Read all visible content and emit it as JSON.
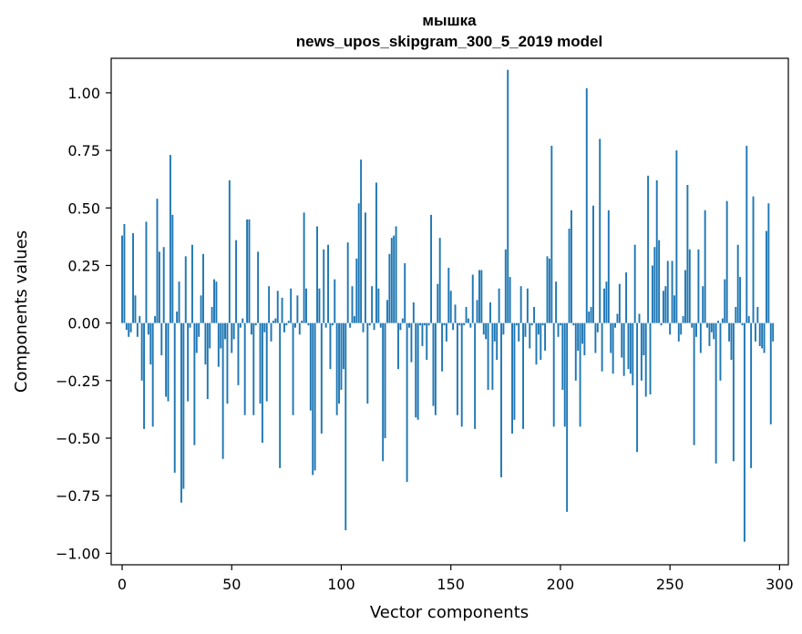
{
  "chart_data": {
    "type": "bar",
    "title_line1": "мышка",
    "title_line2": "news_upos_skipgram_300_5_2019 model",
    "xlabel": "Vector components",
    "ylabel": "Components values",
    "xlim": [
      -5,
      304
    ],
    "ylim": [
      -1.05,
      1.15
    ],
    "xticks": [
      0,
      50,
      100,
      150,
      200,
      250,
      300
    ],
    "xtick_labels": [
      "0",
      "50",
      "100",
      "150",
      "200",
      "250",
      "300"
    ],
    "yticks": [
      -1.0,
      -0.75,
      -0.5,
      -0.25,
      0.0,
      0.25,
      0.5,
      0.75,
      1.0
    ],
    "ytick_labels": [
      "−1.00",
      "−0.75",
      "−0.50",
      "−0.25",
      "0.00",
      "0.25",
      "0.50",
      "0.75",
      "1.00"
    ],
    "bar_color": "#1f77b4",
    "values": [
      0.38,
      0.43,
      -0.03,
      -0.06,
      -0.04,
      0.39,
      0.12,
      -0.06,
      0.03,
      -0.25,
      -0.46,
      0.44,
      -0.05,
      -0.18,
      -0.45,
      0.03,
      0.54,
      0.31,
      -0.14,
      0.33,
      -0.32,
      -0.34,
      0.73,
      0.47,
      -0.65,
      0.05,
      0.18,
      -0.78,
      -0.72,
      0.29,
      -0.34,
      -0.02,
      0.34,
      -0.53,
      -0.13,
      -0.06,
      0.12,
      0.3,
      -0.18,
      -0.33,
      -0.11,
      0.07,
      0.19,
      0.18,
      -0.19,
      -0.11,
      -0.59,
      -0.07,
      -0.35,
      0.62,
      -0.13,
      -0.07,
      0.36,
      -0.27,
      -0.02,
      0.02,
      -0.4,
      0.45,
      0.45,
      -0.05,
      -0.4,
      -0.01,
      0.31,
      -0.35,
      -0.52,
      -0.04,
      -0.34,
      0.16,
      -0.08,
      0.01,
      0.02,
      0.14,
      -0.63,
      0.11,
      -0.04,
      -0.01,
      0.01,
      0.15,
      -0.4,
      -0.02,
      0.12,
      -0.05,
      0.01,
      0.48,
      0.15,
      -0.01,
      -0.38,
      -0.66,
      -0.64,
      0.42,
      0.15,
      -0.48,
      0.32,
      -0.02,
      0.34,
      -0.2,
      -0.01,
      0.19,
      -0.4,
      -0.35,
      -0.29,
      -0.2,
      -0.9,
      0.35,
      -0.02,
      0.16,
      0.03,
      0.28,
      0.52,
      0.71,
      -0.04,
      0.48,
      -0.35,
      -0.01,
      0.16,
      -0.03,
      0.61,
      0.15,
      -0.02,
      -0.6,
      -0.5,
      0.1,
      0.3,
      0.37,
      0.38,
      0.42,
      -0.2,
      -0.03,
      0.02,
      0.26,
      -0.69,
      -0.02,
      -0.17,
      0.09,
      -0.41,
      -0.42,
      -0.01,
      -0.1,
      -0.01,
      -0.16,
      -0.01,
      0.47,
      -0.36,
      -0.4,
      0.17,
      0.37,
      -0.21,
      -0.01,
      -0.08,
      0.24,
      0.14,
      -0.03,
      0.08,
      -0.4,
      -0.01,
      -0.45,
      -0.01,
      0.07,
      0.02,
      -0.02,
      0.21,
      -0.46,
      0.1,
      0.23,
      0.23,
      -0.05,
      -0.07,
      -0.29,
      0.09,
      -0.29,
      -0.08,
      -0.16,
      0.15,
      -0.67,
      -0.05,
      0.32,
      1.1,
      0.2,
      -0.48,
      -0.42,
      -0.01,
      -0.08,
      0.16,
      -0.46,
      -0.06,
      0.15,
      -0.11,
      -0.01,
      0.07,
      -0.18,
      -0.05,
      -0.16,
      -0.01,
      -0.12,
      0.29,
      0.28,
      0.77,
      -0.45,
      0.18,
      -0.06,
      -0.01,
      -0.29,
      -0.45,
      -0.82,
      0.41,
      0.49,
      -0.01,
      -0.25,
      -0.12,
      -0.45,
      -0.09,
      -0.14,
      1.02,
      0.05,
      0.07,
      0.51,
      -0.13,
      -0.04,
      0.8,
      -0.21,
      0.15,
      0.18,
      0.49,
      -0.13,
      -0.22,
      -0.02,
      0.04,
      0.17,
      -0.15,
      -0.23,
      0.22,
      -0.2,
      -0.22,
      -0.27,
      0.34,
      -0.56,
      0.04,
      -0.25,
      -0.14,
      -0.32,
      0.64,
      -0.31,
      0.25,
      0.33,
      0.62,
      0.36,
      -0.01,
      0.14,
      0.16,
      0.27,
      -0.05,
      0.27,
      0.12,
      0.75,
      -0.08,
      -0.05,
      0.03,
      0.23,
      0.6,
      0.32,
      -0.02,
      -0.53,
      -0.06,
      0.32,
      -0.13,
      0.16,
      0.49,
      -0.02,
      -0.1,
      -0.04,
      -0.07,
      -0.61,
      0.01,
      -0.25,
      0.02,
      0.19,
      0.53,
      -0.08,
      -0.16,
      -0.6,
      0.07,
      0.34,
      0.2,
      -0.01,
      -0.95,
      0.77,
      0.03,
      -0.63,
      0.55,
      -0.08,
      0.07,
      -0.1,
      -0.11,
      -0.13,
      0.4,
      0.52,
      -0.44,
      -0.08
    ]
  }
}
